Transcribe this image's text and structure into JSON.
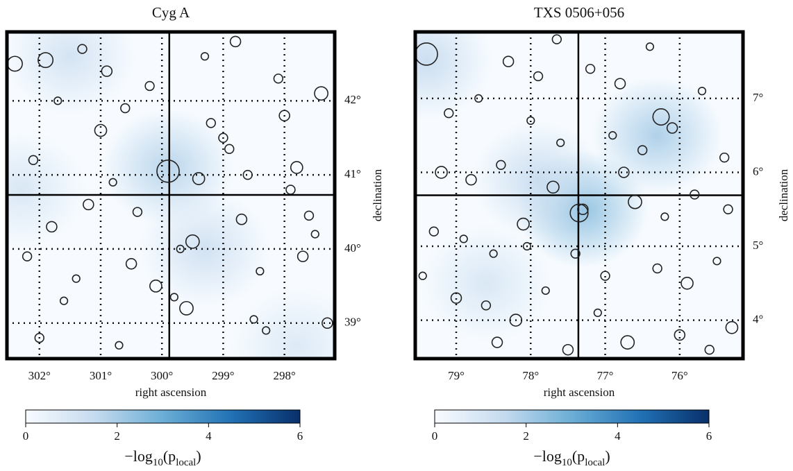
{
  "chart_data": [
    {
      "type": "scatter",
      "title": "Cyg A",
      "xlabel": "right ascension",
      "ylabel": "declination",
      "xlim": [
        302.53,
        297.18
      ],
      "ylim": [
        38.52,
        42.93
      ],
      "xticks": [
        {
          "value": 302,
          "label": "302°"
        },
        {
          "value": 301,
          "label": "301°"
        },
        {
          "value": 300,
          "label": "300°"
        },
        {
          "value": 299,
          "label": "299°"
        },
        {
          "value": 298,
          "label": "298°"
        }
      ],
      "yticks": [
        {
          "value": 39,
          "label": "39°"
        },
        {
          "value": 40,
          "label": "40°"
        },
        {
          "value": 41,
          "label": "41°"
        },
        {
          "value": 42,
          "label": "42°"
        }
      ],
      "grid": true,
      "source": {
        "x": 299.88,
        "y": 40.73
      },
      "hotspots": {
        "x": [
          301.5,
          299.9,
          302.3,
          299.3,
          297.8
        ],
        "y": [
          42.6,
          41.1,
          40.8,
          40.0,
          38.7
        ],
        "values": [
          1.2,
          1.8,
          1.0,
          1.3,
          0.9
        ]
      },
      "series": [
        {
          "color": "#222222",
          "x": [
            302.4,
            302.1,
            301.8,
            301.6,
            301.3,
            301.0,
            300.8,
            300.5,
            300.2,
            299.9,
            299.6,
            299.3,
            299.0,
            298.7,
            298.4,
            298.1,
            297.8,
            297.5,
            297.3,
            302.2,
            301.7,
            301.2,
            300.6,
            300.1,
            299.7,
            299.2,
            298.8,
            298.3,
            297.9,
            297.4,
            302.0,
            301.4,
            300.9,
            300.4,
            299.8,
            299.4,
            298.9,
            298.5,
            298.0,
            297.6,
            301.9,
            300.7,
            299.5,
            298.6,
            297.7
          ],
          "values": [
            42.5,
            41.2,
            40.3,
            39.3,
            42.7,
            41.6,
            40.9,
            39.8,
            42.2,
            41.05,
            39.2,
            42.6,
            41.5,
            40.4,
            39.7,
            42.3,
            41.1,
            40.2,
            39.0,
            39.9,
            42.0,
            40.6,
            41.9,
            39.5,
            40.0,
            41.7,
            42.8,
            38.9,
            40.8,
            42.1,
            38.8,
            39.6,
            42.4,
            40.5,
            39.35,
            40.95,
            41.35,
            39.05,
            41.8,
            40.45,
            42.55,
            38.7,
            40.1,
            41.0,
            39.9
          ],
          "size": [
            0.1,
            0.06,
            0.07,
            0.05,
            0.06,
            0.08,
            0.05,
            0.07,
            0.06,
            0.15,
            0.09,
            0.05,
            0.06,
            0.07,
            0.05,
            0.06,
            0.08,
            0.05,
            0.07,
            0.06,
            0.05,
            0.07,
            0.06,
            0.08,
            0.05,
            0.06,
            0.07,
            0.05,
            0.06,
            0.09,
            0.06,
            0.05,
            0.07,
            0.06,
            0.05,
            0.08,
            0.06,
            0.05,
            0.07,
            0.06,
            0.1,
            0.05,
            0.09,
            0.06,
            0.07
          ]
        }
      ],
      "colorbar": {
        "lim": [
          0,
          6
        ],
        "ticks": [
          0,
          2,
          4,
          6
        ],
        "colormap": [
          "#f7fbff",
          "#c6dbef",
          "#6baed6",
          "#2171b5",
          "#08306b"
        ],
        "label_parts": [
          "−log",
          "10",
          "(p",
          "local",
          ")"
        ]
      }
    },
    {
      "type": "scatter",
      "title": "TXS 0506+056",
      "xlabel": "right ascension",
      "ylabel": "declination",
      "xlim": [
        79.55,
        75.15
      ],
      "ylim": [
        3.48,
        7.9
      ],
      "xticks": [
        {
          "value": 79,
          "label": "79°"
        },
        {
          "value": 78,
          "label": "78°"
        },
        {
          "value": 77,
          "label": "77°"
        },
        {
          "value": 76,
          "label": "76°"
        }
      ],
      "yticks": [
        {
          "value": 4,
          "label": "4°"
        },
        {
          "value": 5,
          "label": "5°"
        },
        {
          "value": 6,
          "label": "6°"
        },
        {
          "value": 7,
          "label": "7°"
        }
      ],
      "grid": true,
      "source": {
        "x": 77.36,
        "y": 5.69
      },
      "hotspots": {
        "x": [
          79.4,
          77.3,
          76.3,
          77.9,
          78.6
        ],
        "y": [
          7.5,
          5.5,
          6.5,
          5.9,
          4.5
        ],
        "values": [
          1.5,
          2.5,
          2.0,
          1.5,
          1.0
        ]
      },
      "series": [
        {
          "color": "#222222",
          "x": [
            79.4,
            79.1,
            78.8,
            78.5,
            78.2,
            77.9,
            77.6,
            77.3,
            77.0,
            76.7,
            76.4,
            76.1,
            75.8,
            75.5,
            75.3,
            79.3,
            79.0,
            78.7,
            78.4,
            78.1,
            77.8,
            77.5,
            77.2,
            76.9,
            76.6,
            76.3,
            76.0,
            75.7,
            75.4,
            79.2,
            78.9,
            78.6,
            78.3,
            78.0,
            77.7,
            77.4,
            77.1,
            76.8,
            76.5,
            76.2,
            75.9,
            75.6,
            79.45,
            78.45,
            77.35,
            76.25,
            75.35,
            78.05,
            76.75,
            77.65
          ],
          "values": [
            7.6,
            6.8,
            5.9,
            4.9,
            4.0,
            7.3,
            6.4,
            5.5,
            4.6,
            3.7,
            7.7,
            6.6,
            5.7,
            4.8,
            3.9,
            5.2,
            4.3,
            7.0,
            6.1,
            5.3,
            4.4,
            3.6,
            7.4,
            6.5,
            5.6,
            4.7,
            3.8,
            7.1,
            6.2,
            6.0,
            5.1,
            4.2,
            7.5,
            6.7,
            5.8,
            4.9,
            4.1,
            7.2,
            6.3,
            5.4,
            4.5,
            3.6,
            4.6,
            3.7,
            5.45,
            6.75,
            5.5,
            5.0,
            6.0,
            7.8
          ],
          "size": [
            0.15,
            0.06,
            0.07,
            0.05,
            0.08,
            0.06,
            0.05,
            0.07,
            0.06,
            0.09,
            0.05,
            0.07,
            0.06,
            0.05,
            0.08,
            0.06,
            0.07,
            0.05,
            0.06,
            0.08,
            0.05,
            0.07,
            0.06,
            0.05,
            0.09,
            0.06,
            0.07,
            0.05,
            0.06,
            0.08,
            0.05,
            0.06,
            0.07,
            0.05,
            0.08,
            0.06,
            0.05,
            0.07,
            0.06,
            0.05,
            0.08,
            0.06,
            0.05,
            0.07,
            0.12,
            0.11,
            0.06,
            0.05,
            0.07,
            0.06
          ]
        }
      ],
      "colorbar": {
        "lim": [
          0,
          6
        ],
        "ticks": [
          0,
          2,
          4,
          6
        ],
        "colormap": [
          "#f7fbff",
          "#c6dbef",
          "#6baed6",
          "#2171b5",
          "#08306b"
        ],
        "label_parts": [
          "−log",
          "10",
          "(p",
          "local",
          ")"
        ]
      }
    }
  ]
}
